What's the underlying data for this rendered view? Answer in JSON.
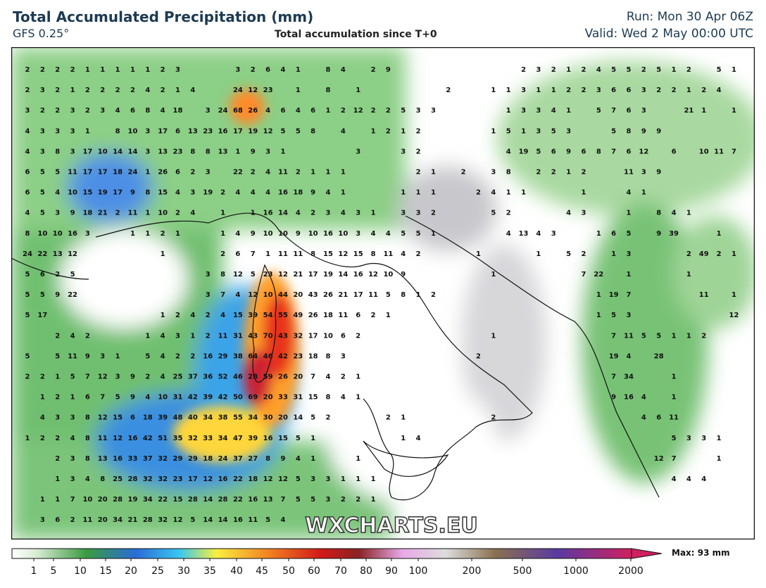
{
  "header": {
    "title": "Total Accumulated Precipitation (mm)",
    "model": "GFS 0.25°",
    "subtitle": "Total accumulation since T+0",
    "run": "Run: Mon 30 Apr 06Z",
    "valid": "Valid: Wed 2 May 00:00 UTC"
  },
  "watermark": "WXCHARTS.EU",
  "colorbar": {
    "ticks": [
      1,
      5,
      10,
      15,
      20,
      25,
      30,
      35,
      40,
      45,
      50,
      60,
      70,
      80,
      90,
      100,
      200,
      500,
      1000,
      2000
    ],
    "max_label": "Max: 93 mm"
  },
  "grid_values": [
    [
      2,
      2,
      2,
      2,
      1,
      1,
      1,
      1,
      1,
      2,
      3,
      null,
      null,
      null,
      3,
      2,
      6,
      4,
      1,
      null,
      8,
      4,
      null,
      2,
      9,
      null,
      null,
      null,
      null,
      null,
      null,
      null,
      null,
      2,
      3,
      2,
      1,
      2,
      4,
      5,
      5,
      2,
      5,
      1,
      2,
      null,
      5,
      1
    ],
    [
      2,
      3,
      2,
      1,
      2,
      2,
      2,
      2,
      4,
      2,
      1,
      4,
      null,
      null,
      24,
      12,
      23,
      null,
      1,
      null,
      8,
      null,
      1,
      null,
      null,
      null,
      null,
      null,
      2,
      null,
      null,
      1,
      1,
      3,
      1,
      1,
      2,
      2,
      3,
      6,
      6,
      3,
      2,
      2,
      1,
      2,
      4
    ],
    [
      3,
      2,
      2,
      3,
      2,
      3,
      4,
      6,
      8,
      4,
      18,
      null,
      3,
      24,
      68,
      26,
      4,
      6,
      4,
      6,
      1,
      2,
      12,
      2,
      2,
      5,
      3,
      3,
      null,
      null,
      null,
      null,
      1,
      3,
      3,
      4,
      1,
      null,
      5,
      7,
      6,
      3,
      null,
      null,
      21,
      1,
      null,
      1
    ],
    [
      4,
      3,
      3,
      3,
      1,
      null,
      8,
      10,
      3,
      17,
      6,
      13,
      23,
      16,
      17,
      19,
      12,
      5,
      5,
      8,
      null,
      4,
      null,
      1,
      2,
      1,
      2,
      null,
      null,
      null,
      null,
      1,
      5,
      1,
      3,
      5,
      3,
      null,
      null,
      5,
      8,
      9,
      9
    ],
    [
      4,
      3,
      8,
      3,
      17,
      10,
      14,
      14,
      3,
      13,
      23,
      8,
      8,
      13,
      1,
      9,
      3,
      1,
      null,
      null,
      null,
      null,
      3,
      null,
      null,
      3,
      2,
      null,
      null,
      null,
      null,
      null,
      4,
      19,
      5,
      6,
      9,
      6,
      8,
      7,
      6,
      12,
      null,
      6,
      null,
      10,
      11,
      7
    ],
    [
      6,
      5,
      5,
      11,
      17,
      17,
      18,
      24,
      1,
      26,
      6,
      2,
      3,
      null,
      22,
      2,
      4,
      11,
      2,
      1,
      1,
      1,
      null,
      null,
      null,
      null,
      2,
      1,
      null,
      2,
      null,
      3,
      8,
      null,
      2,
      2,
      1,
      2,
      null,
      null,
      11,
      3,
      9
    ],
    [
      6,
      5,
      4,
      10,
      15,
      19,
      17,
      9,
      8,
      15,
      4,
      3,
      19,
      2,
      4,
      4,
      4,
      16,
      18,
      9,
      4,
      1,
      null,
      null,
      null,
      1,
      1,
      1,
      null,
      null,
      2,
      4,
      1,
      1,
      null,
      null,
      null,
      1,
      null,
      null,
      4,
      1
    ],
    [
      4,
      5,
      3,
      9,
      18,
      21,
      2,
      11,
      1,
      10,
      2,
      4,
      null,
      1,
      null,
      1,
      16,
      14,
      4,
      2,
      3,
      4,
      3,
      1,
      null,
      3,
      3,
      2,
      null,
      null,
      null,
      5,
      2,
      null,
      null,
      null,
      4,
      3,
      null,
      null,
      1,
      null,
      8,
      4,
      1
    ],
    [
      8,
      10,
      10,
      16,
      3,
      null,
      null,
      1,
      1,
      2,
      1,
      null,
      null,
      1,
      4,
      9,
      10,
      10,
      9,
      10,
      16,
      10,
      3,
      4,
      4,
      5,
      5,
      1,
      null,
      null,
      null,
      null,
      4,
      13,
      4,
      3,
      null,
      null,
      1,
      6,
      5,
      null,
      9,
      39,
      null,
      null,
      1
    ],
    [
      24,
      22,
      13,
      12,
      null,
      null,
      null,
      null,
      null,
      1,
      null,
      null,
      null,
      2,
      6,
      7,
      1,
      11,
      11,
      8,
      15,
      12,
      15,
      8,
      11,
      4,
      2,
      null,
      null,
      null,
      1,
      null,
      null,
      null,
      1,
      null,
      5,
      2,
      null,
      1,
      3,
      null,
      null,
      null,
      2,
      49,
      2,
      1
    ],
    [
      5,
      6,
      2,
      5,
      null,
      null,
      null,
      null,
      null,
      null,
      null,
      null,
      3,
      8,
      12,
      5,
      23,
      12,
      21,
      17,
      19,
      14,
      16,
      12,
      10,
      9,
      null,
      null,
      null,
      null,
      null,
      1,
      null,
      null,
      null,
      null,
      null,
      7,
      22,
      null,
      1,
      null,
      null,
      null,
      1
    ],
    [
      5,
      5,
      9,
      22,
      null,
      null,
      null,
      null,
      null,
      null,
      null,
      null,
      3,
      7,
      4,
      12,
      10,
      44,
      20,
      43,
      26,
      21,
      17,
      11,
      5,
      8,
      1,
      2,
      null,
      null,
      null,
      null,
      null,
      null,
      null,
      null,
      null,
      null,
      1,
      19,
      7,
      null,
      null,
      null,
      null,
      11,
      null,
      1
    ],
    [
      5,
      17,
      null,
      null,
      null,
      null,
      null,
      null,
      null,
      1,
      2,
      4,
      2,
      4,
      15,
      39,
      54,
      55,
      49,
      26,
      18,
      11,
      6,
      2,
      1,
      null,
      null,
      null,
      null,
      null,
      null,
      null,
      null,
      null,
      null,
      null,
      null,
      null,
      1,
      5,
      3,
      null,
      null,
      null,
      null,
      null,
      null,
      12
    ],
    [
      null,
      null,
      2,
      4,
      2,
      null,
      null,
      null,
      1,
      4,
      3,
      1,
      2,
      11,
      31,
      43,
      70,
      43,
      32,
      17,
      10,
      6,
      2,
      null,
      null,
      null,
      null,
      null,
      null,
      null,
      null,
      1,
      null,
      null,
      null,
      null,
      null,
      null,
      null,
      7,
      11,
      5,
      5,
      1,
      1,
      2
    ],
    [
      5,
      null,
      5,
      11,
      9,
      3,
      1,
      null,
      5,
      4,
      2,
      2,
      16,
      29,
      38,
      64,
      46,
      42,
      23,
      18,
      8,
      3,
      null,
      null,
      null,
      null,
      null,
      null,
      null,
      null,
      2,
      null,
      null,
      null,
      null,
      null,
      null,
      null,
      null,
      19,
      4,
      null,
      28
    ],
    [
      2,
      2,
      1,
      5,
      7,
      12,
      3,
      9,
      2,
      4,
      25,
      37,
      36,
      52,
      46,
      28,
      59,
      26,
      20,
      7,
      4,
      2,
      1,
      null,
      null,
      null,
      null,
      null,
      null,
      null,
      null,
      null,
      null,
      null,
      null,
      null,
      null,
      null,
      null,
      7,
      34,
      null,
      null,
      1
    ],
    [
      null,
      1,
      2,
      1,
      6,
      7,
      5,
      9,
      4,
      10,
      31,
      42,
      39,
      42,
      50,
      69,
      20,
      33,
      31,
      15,
      8,
      4,
      1,
      null,
      null,
      null,
      null,
      null,
      null,
      null,
      null,
      null,
      null,
      null,
      null,
      null,
      null,
      null,
      null,
      9,
      16,
      4,
      null,
      1
    ],
    [
      null,
      4,
      3,
      3,
      8,
      12,
      15,
      6,
      18,
      39,
      48,
      40,
      34,
      38,
      55,
      34,
      30,
      20,
      14,
      5,
      2,
      null,
      null,
      null,
      2,
      1,
      null,
      null,
      null,
      null,
      null,
      2,
      null,
      null,
      null,
      null,
      null,
      null,
      null,
      null,
      null,
      4,
      6,
      11
    ],
    [
      1,
      2,
      2,
      4,
      8,
      11,
      12,
      16,
      42,
      51,
      35,
      32,
      33,
      34,
      47,
      39,
      16,
      15,
      5,
      1,
      null,
      null,
      null,
      null,
      null,
      1,
      4,
      null,
      null,
      null,
      null,
      null,
      null,
      null,
      null,
      null,
      null,
      null,
      null,
      null,
      null,
      null,
      null,
      5,
      3,
      3,
      1
    ],
    [
      null,
      null,
      2,
      3,
      8,
      13,
      16,
      33,
      37,
      32,
      29,
      29,
      18,
      24,
      37,
      27,
      8,
      9,
      4,
      1,
      null,
      null,
      1,
      null,
      null,
      null,
      null,
      null,
      null,
      null,
      null,
      null,
      null,
      null,
      null,
      null,
      null,
      null,
      null,
      null,
      null,
      null,
      12,
      7,
      null,
      null,
      1
    ],
    [
      null,
      null,
      1,
      3,
      4,
      8,
      25,
      28,
      32,
      32,
      23,
      17,
      12,
      16,
      22,
      18,
      12,
      12,
      5,
      3,
      3,
      1,
      1,
      1,
      null,
      null,
      null,
      null,
      null,
      null,
      null,
      null,
      null,
      null,
      null,
      null,
      null,
      null,
      null,
      null,
      null,
      null,
      null,
      4,
      4,
      4
    ],
    [
      null,
      1,
      1,
      7,
      10,
      20,
      28,
      19,
      34,
      22,
      15,
      28,
      14,
      28,
      22,
      16,
      13,
      7,
      5,
      5,
      3,
      2,
      2,
      1
    ],
    [
      null,
      3,
      6,
      2,
      11,
      20,
      34,
      21,
      28,
      32,
      12,
      5,
      14,
      14,
      16,
      11,
      5,
      4
    ]
  ]
}
